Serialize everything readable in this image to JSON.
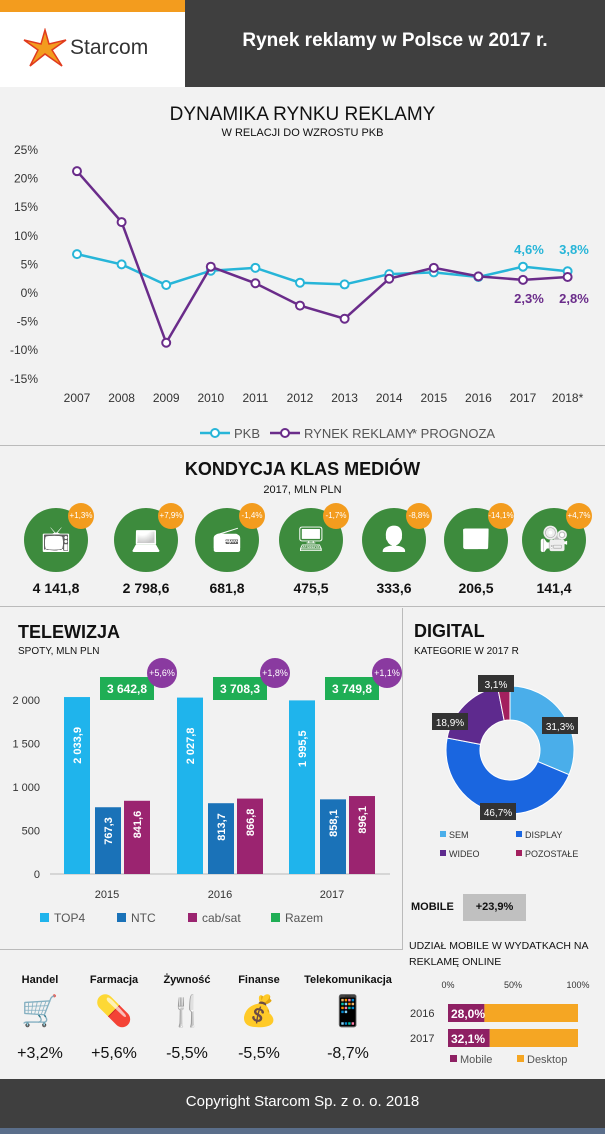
{
  "header": {
    "logo": "Starcom",
    "title": "Rynek reklamy w Polsce w 2017 r."
  },
  "chart_data": [
    {
      "type": "line",
      "title": "DYNAMIKA RYNKU REKLAMY",
      "subtitle": "W RELACJI DO WZROSTU PKB",
      "x": [
        "2007",
        "2008",
        "2009",
        "2010",
        "2011",
        "2012",
        "2013",
        "2014",
        "2015",
        "2016",
        "2017",
        "2018*"
      ],
      "yticks": [
        "25%",
        "20%",
        "15%",
        "10%",
        "5%",
        "0%",
        "-5%",
        "-10%",
        "-15%"
      ],
      "ylim": [
        -15,
        25
      ],
      "series": [
        {
          "name": "PKB",
          "color": "#27b5d8",
          "values": [
            6.8,
            5.0,
            1.4,
            3.9,
            4.4,
            1.8,
            1.5,
            3.3,
            3.6,
            2.8,
            4.6,
            3.8
          ]
        },
        {
          "name": "RYNEK REKLAMY",
          "color": "#6a2c8a",
          "values": [
            21.3,
            12.4,
            -8.7,
            4.6,
            1.7,
            -2.2,
            -4.5,
            2.5,
            4.4,
            2.9,
            2.3,
            2.8
          ]
        }
      ],
      "labels": {
        "pkb2017": "4,6%",
        "pkb2018": "3,8%",
        "r2017": "2,3%",
        "r2018": "2,8%"
      },
      "note": "* PROGNOZA",
      "legend": "bottom"
    },
    {
      "type": "bar",
      "title": "TELEWIZJA",
      "subtitle": "SPOTY, MLN PLN",
      "categories": [
        "2015",
        "2016",
        "2017"
      ],
      "yticks": [
        "2 000",
        "1 500",
        "1 000",
        "500",
        "0"
      ],
      "ylim": [
        0,
        2200
      ],
      "series": [
        {
          "name": "TOP4",
          "color": "#1fb4ec",
          "values": [
            2033.9,
            2027.8,
            1995.5
          ],
          "labels": [
            "2 033,9",
            "2 027,8",
            "1 995,5"
          ]
        },
        {
          "name": "NTC",
          "color": "#1a72b8",
          "values": [
            767.3,
            813.7,
            858.1
          ],
          "labels": [
            "767,3",
            "813,7",
            "858,1"
          ]
        },
        {
          "name": "cab/sat",
          "color": "#9b2470",
          "values": [
            841.6,
            866.8,
            896.1
          ],
          "labels": [
            "841,6",
            "866,8",
            "896,1"
          ]
        },
        {
          "name": "Razem",
          "color": "#1fae55",
          "values": [
            3642.8,
            3708.3,
            3749.8
          ],
          "labels": [
            "3 642,8",
            "3 708,3",
            "3 749,8"
          ]
        }
      ],
      "growth": [
        "+5,6%",
        "+1,8%",
        "+1,1%"
      ],
      "legend": "bottom"
    },
    {
      "type": "pie",
      "title": "DIGITAL",
      "subtitle": "KATEGORIE W 2017 R",
      "slices": [
        {
          "name": "SEM",
          "value": 31.3,
          "label": "31,3%",
          "color": "#4aaeea"
        },
        {
          "name": "DISPLAY",
          "value": 46.7,
          "label": "46,7%",
          "color": "#1a66e0"
        },
        {
          "name": "WIDEO",
          "value": 18.9,
          "label": "18,9%",
          "color": "#5e2a8e"
        },
        {
          "name": "POZOSTAŁE",
          "value": 3.1,
          "label": "3,1%",
          "color": "#a3205e"
        }
      ]
    },
    {
      "type": "bar",
      "title": "UDZIAŁ MOBILE W WYDATKACH NA REKLAMĘ  ONLINE",
      "orientation": "horizontal",
      "stacked": true,
      "categories": [
        "2016",
        "2017"
      ],
      "xticks": [
        "0%",
        "50%",
        "100%"
      ],
      "series": [
        {
          "name": "Mobile",
          "color": "#8e2063",
          "values": [
            28.0,
            32.1
          ],
          "labels": [
            "28,0%",
            "32,1%"
          ]
        },
        {
          "name": "Desktop",
          "color": "#f5a623",
          "values": [
            72.0,
            67.9
          ]
        }
      ]
    }
  ],
  "media": {
    "title": "KONDYCJA KLAS MEDIÓW",
    "subtitle": "2017, MLN PLN",
    "items": [
      {
        "icon": "tv-icon",
        "value": "4 141,8",
        "change": "+1,3%"
      },
      {
        "icon": "internet-icon",
        "value": "2 798,6",
        "change": "+7,9%"
      },
      {
        "icon": "radio-icon",
        "value": "681,8",
        "change": "-1,4%"
      },
      {
        "icon": "outdoor-icon",
        "value": "475,5",
        "change": "-1,7%"
      },
      {
        "icon": "magazine-icon",
        "value": "333,6",
        "change": "-8,8%"
      },
      {
        "icon": "newspaper-icon",
        "value": "206,5",
        "change": "-14,1%"
      },
      {
        "icon": "cinema-icon",
        "value": "141,4",
        "change": "+4,7%"
      }
    ]
  },
  "mobile": {
    "label": "MOBILE",
    "value": "+23,9%"
  },
  "sectors": [
    {
      "name": "Handel",
      "icon": "cart-icon",
      "value": "+3,2%"
    },
    {
      "name": "Farmacja",
      "icon": "pharmacy-icon",
      "value": "+5,6%"
    },
    {
      "name": "Żywność",
      "icon": "cutlery-icon",
      "value": "-5,5%"
    },
    {
      "name": "Finanse",
      "icon": "coins-icon",
      "value": "-5,5%"
    },
    {
      "name": "Telekomunikacja",
      "icon": "phone-icon",
      "value": "-8,7%"
    }
  ],
  "footer": "Copyright Starcom Sp. z o. o. 2018"
}
